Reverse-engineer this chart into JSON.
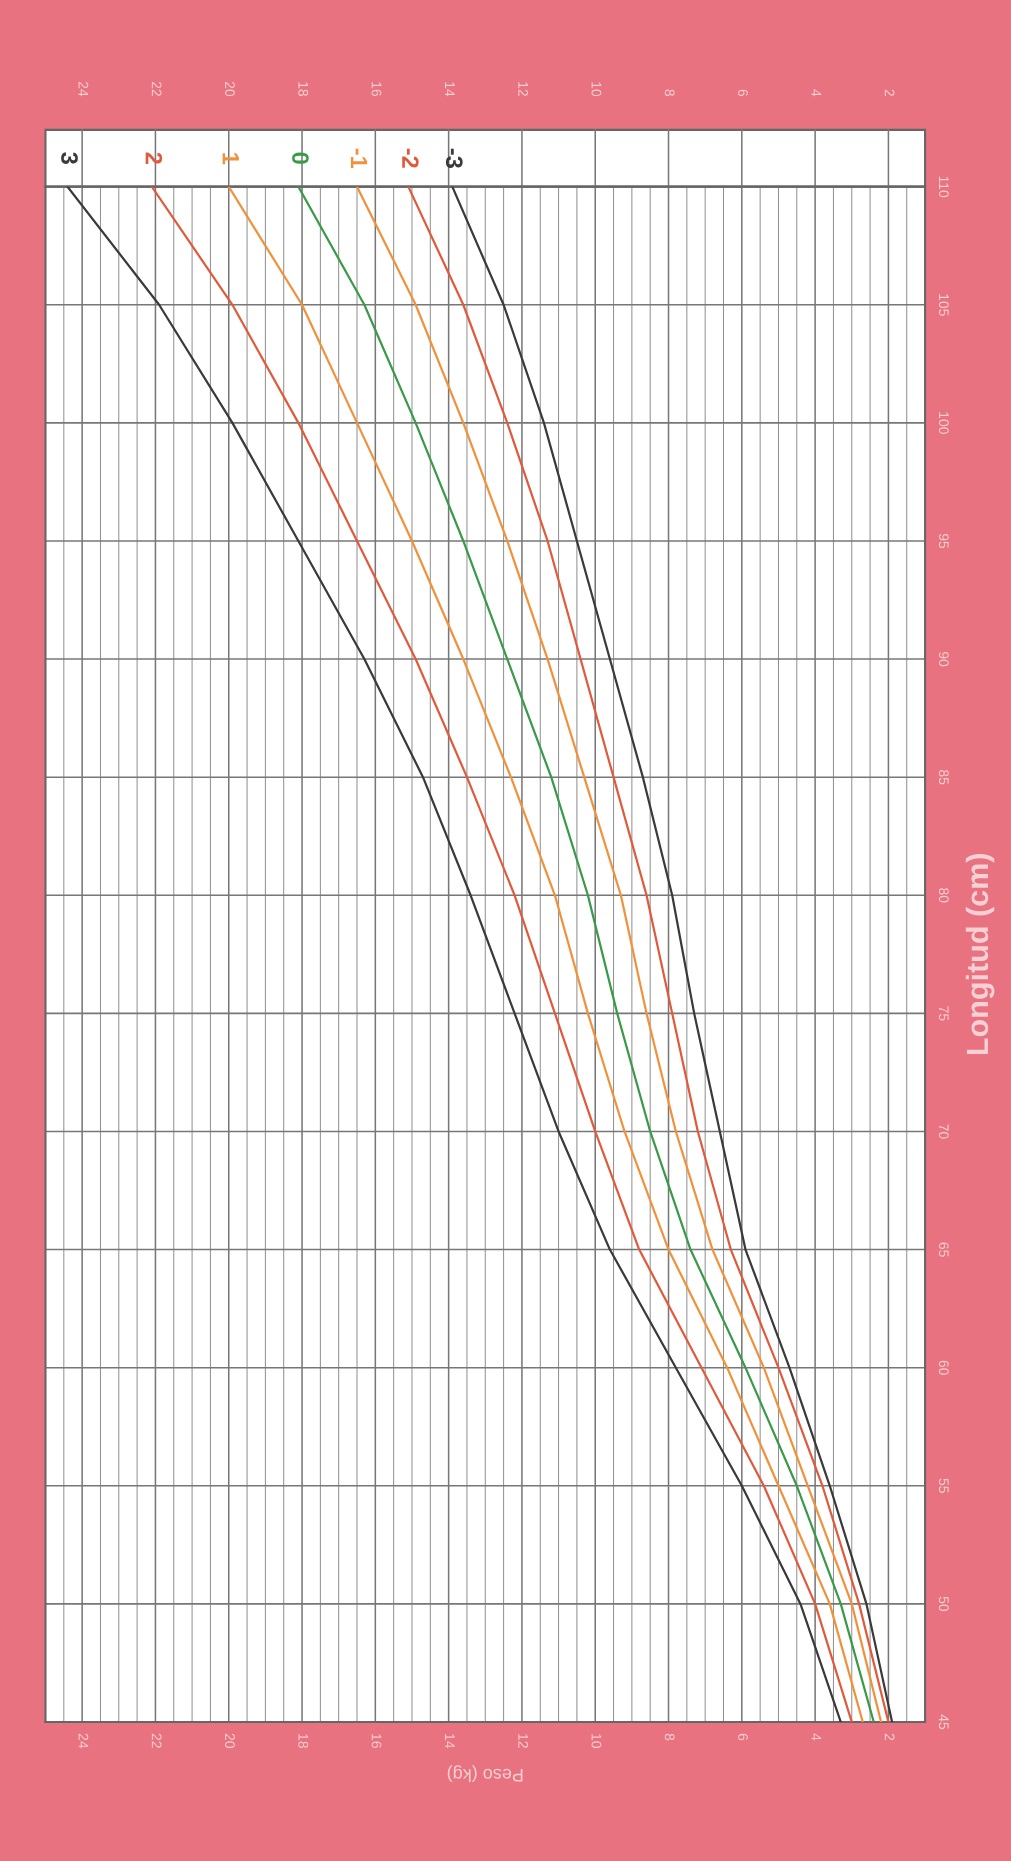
{
  "chart_data": {
    "type": "line",
    "xlabel": "Peso (kg)",
    "ylabel": "Longitud (cm)",
    "xlim": [
      25,
      1
    ],
    "xticks": [
      24,
      22,
      20,
      18,
      16,
      14,
      12,
      10,
      8,
      6,
      4,
      2
    ],
    "x2lim": [
      25,
      1
    ],
    "x2ticks": [
      24,
      22,
      20,
      18,
      16,
      14,
      12,
      10,
      8,
      6,
      4,
      2
    ],
    "ylim": [
      45,
      110
    ],
    "yticks": [
      45,
      50,
      55,
      60,
      65,
      70,
      75,
      80,
      85,
      90,
      95,
      100,
      105,
      110
    ],
    "grid": true,
    "legend": false,
    "marker": "none",
    "line_style": "solid",
    "series": [
      {
        "name": "3",
        "color": "#3a3a3a",
        "x": [
          3.3,
          4.4,
          6.0,
          7.8,
          9.6,
          11.0,
          12.2,
          13.4,
          14.7,
          16.3,
          18.1,
          19.9,
          21.9,
          24.4
        ],
        "values": [
          45,
          50,
          55,
          60,
          65,
          70,
          75,
          80,
          85,
          90,
          95,
          100,
          105,
          110
        ]
      },
      {
        "name": "2",
        "color": "#e05a3c",
        "x": [
          3.0,
          4.0,
          5.4,
          7.1,
          8.8,
          10.0,
          11.1,
          12.2,
          13.5,
          14.9,
          16.5,
          18.1,
          19.9,
          22.1
        ],
        "values": [
          45,
          50,
          55,
          60,
          65,
          70,
          75,
          80,
          85,
          90,
          95,
          100,
          105,
          110
        ]
      },
      {
        "name": "1",
        "color": "#f0923c",
        "x": [
          2.7,
          3.6,
          5.0,
          6.4,
          8.0,
          9.2,
          10.2,
          11.1,
          12.3,
          13.6,
          15.0,
          16.5,
          18.0,
          20.0
        ],
        "values": [
          45,
          50,
          55,
          60,
          65,
          70,
          75,
          80,
          85,
          90,
          95,
          100,
          105,
          110
        ]
      },
      {
        "name": "0",
        "color": "#3a9a48",
        "x": [
          2.4,
          3.3,
          4.5,
          5.9,
          7.4,
          8.5,
          9.4,
          10.2,
          11.2,
          12.4,
          13.6,
          14.9,
          16.3,
          18.1
        ],
        "values": [
          45,
          50,
          55,
          60,
          65,
          70,
          75,
          80,
          85,
          90,
          95,
          100,
          105,
          110
        ]
      },
      {
        "name": "-1",
        "color": "#f0923c",
        "x": [
          2.2,
          3.0,
          4.2,
          5.4,
          6.8,
          7.8,
          8.6,
          9.3,
          10.3,
          11.3,
          12.4,
          13.6,
          14.9,
          16.5
        ],
        "values": [
          45,
          50,
          55,
          60,
          65,
          70,
          75,
          80,
          85,
          90,
          95,
          100,
          105,
          110
        ]
      },
      {
        "name": "-2",
        "color": "#e05a3c",
        "x": [
          2.0,
          2.8,
          3.8,
          5.0,
          6.3,
          7.2,
          7.9,
          8.6,
          9.5,
          10.4,
          11.3,
          12.4,
          13.6,
          15.1
        ],
        "values": [
          45,
          50,
          55,
          60,
          65,
          70,
          75,
          80,
          85,
          90,
          95,
          100,
          105,
          110
        ]
      },
      {
        "name": "-3",
        "color": "#3a3a3a",
        "x": [
          1.9,
          2.6,
          3.6,
          4.7,
          5.9,
          6.6,
          7.3,
          7.9,
          8.7,
          9.6,
          10.5,
          11.4,
          12.5,
          13.9
        ],
        "values": [
          45,
          50,
          55,
          60,
          65,
          70,
          75,
          80,
          85,
          90,
          95,
          100,
          105,
          110
        ]
      }
    ]
  }
}
